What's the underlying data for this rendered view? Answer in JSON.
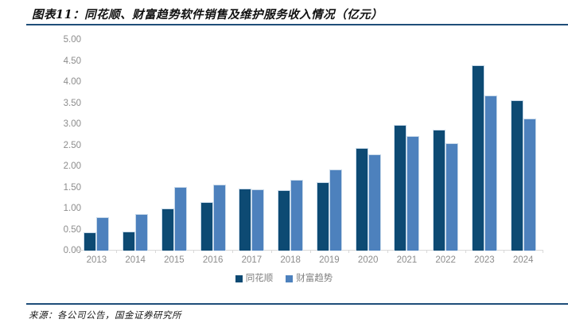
{
  "header": {
    "title": "图表11：同花顺、财富趋势软件销售及维护服务收入情况（亿元）"
  },
  "footer": {
    "source_note": "来源：各公司公告，国金证券研究所"
  },
  "colors": {
    "series_tonghuashun": "#0d4a73",
    "series_caifuqushi": "#4d81bd",
    "rule": "#1f4e79",
    "axis_text": "#8c8c8c",
    "axis_line": "#d9d9d9",
    "legend_text": "#7f7f7f"
  },
  "chart_data": {
    "type": "bar",
    "title": "同花顺、财富趋势软件销售及维护服务收入情况（亿元）",
    "xlabel": "",
    "ylabel": "",
    "categories": [
      "2013",
      "2014",
      "2015",
      "2016",
      "2017",
      "2018",
      "2019",
      "2020",
      "2021",
      "2022",
      "2023",
      "2024"
    ],
    "series": [
      {
        "name": "同花顺",
        "color": "#0d4a73",
        "values": [
          0.44,
          0.46,
          1.0,
          1.15,
          1.48,
          1.43,
          1.62,
          2.44,
          2.98,
          2.86,
          4.4,
          3.57
        ]
      },
      {
        "name": "财富趋势",
        "color": "#4d81bd",
        "values": [
          0.79,
          0.86,
          1.51,
          1.56,
          1.45,
          1.68,
          1.92,
          2.28,
          2.72,
          2.55,
          3.67,
          3.14
        ]
      }
    ],
    "ylim": [
      0,
      5
    ],
    "ytick_step": 0.5,
    "ytick_labels": [
      "0.00",
      "0.50",
      "1.00",
      "1.50",
      "2.00",
      "2.50",
      "3.00",
      "3.50",
      "4.00",
      "4.50",
      "5.00"
    ],
    "grid": false,
    "legend_position": "bottom"
  }
}
